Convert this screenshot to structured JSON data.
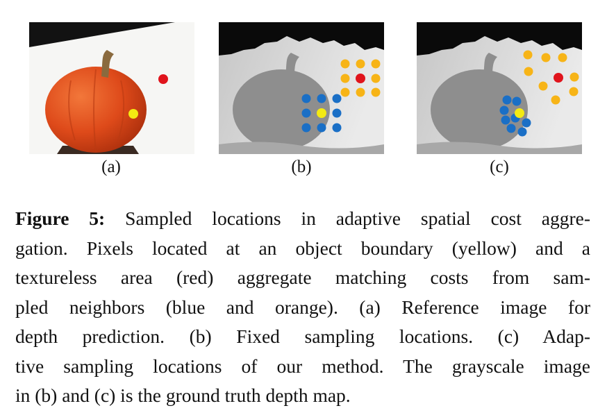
{
  "panels": [
    {
      "id": "a",
      "label": "(a)"
    },
    {
      "id": "b",
      "label": "(b)"
    },
    {
      "id": "c",
      "label": "(c)"
    }
  ],
  "colors": {
    "boundary_pixel": "#f4ea12",
    "textureless_pixel": "#e0141c",
    "boundary_neighbors": "#1a6fc6",
    "textureless_neighbors": "#f7b417",
    "pumpkin": "#e2501e"
  },
  "caption": {
    "figure_label": "Figure 5:",
    "line1": "Sampled locations in adaptive spatial cost aggre-",
    "line2": "gation. Pixels located at an object boundary (yellow) and a",
    "line3": "textureless area (red) aggregate matching costs from sam-",
    "line4": "pled neighbors (blue and orange). (a) Reference image for",
    "line5": "depth prediction. (b) Fixed sampling locations. (c) Adap-",
    "line6": "tive sampling locations of our method. The grayscale image",
    "line7": "in (b) and (c) is the ground truth depth map."
  }
}
